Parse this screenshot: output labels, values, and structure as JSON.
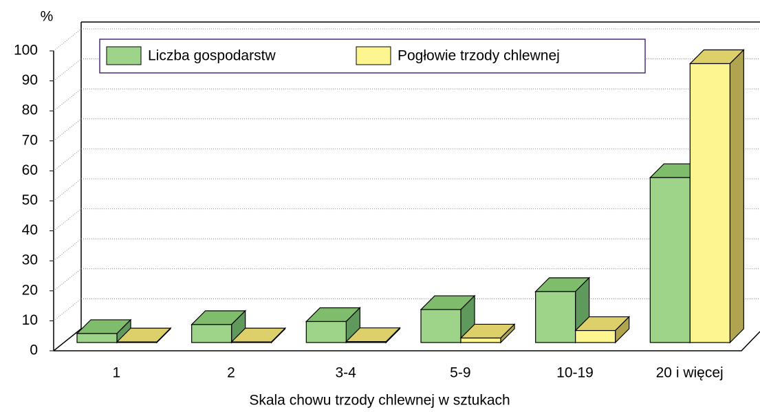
{
  "chart_data": {
    "type": "bar3d",
    "y_unit_label": "%",
    "x_label": "Skala chowu trzody chlewnej w sztukach",
    "categories": [
      "1",
      "2",
      "3-4",
      "5-9",
      "10-19",
      "20 i więcej"
    ],
    "series": [
      {
        "name": "Liczba gospodarstw",
        "color": "#9ed48a",
        "values": [
          3,
          6,
          7,
          11,
          17,
          55
        ]
      },
      {
        "name": "Pogłowie trzody chlewnej",
        "color": "#fdf58f",
        "values": [
          0.2,
          0.2,
          0.3,
          1.5,
          4,
          93
        ]
      }
    ],
    "ylim": [
      0,
      100
    ],
    "yticks": [
      0,
      10,
      20,
      30,
      40,
      50,
      60,
      70,
      80,
      90,
      100
    ],
    "grid": true
  }
}
